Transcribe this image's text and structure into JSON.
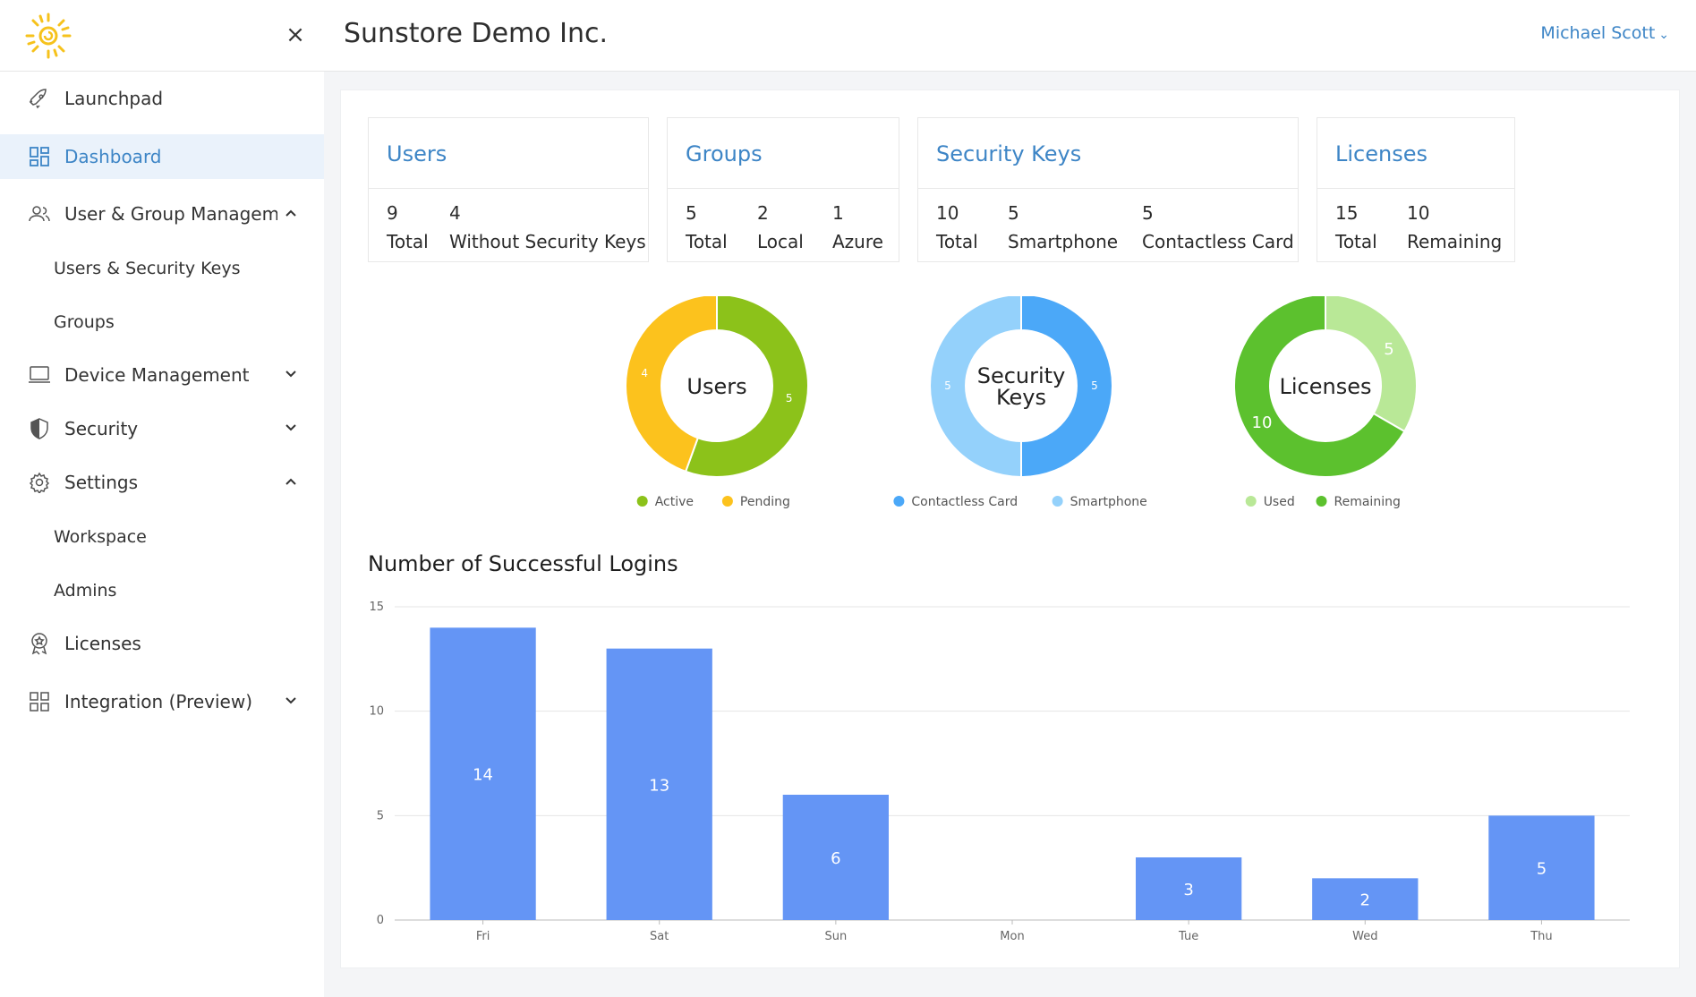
{
  "header": {
    "title": "Sunstore Demo Inc.",
    "user_name": "Michael Scott",
    "close_glyph": "×",
    "chevron_glyph": "⌄"
  },
  "sidebar": {
    "items": [
      {
        "label": "Launchpad",
        "icon": "rocket-icon"
      },
      {
        "label": "Dashboard",
        "icon": "dashboard-icon",
        "active": true
      },
      {
        "label": "User & Group Manageme...",
        "icon": "users-icon",
        "expanded": true
      },
      {
        "label": "Device Management",
        "icon": "laptop-icon",
        "expanded": false
      },
      {
        "label": "Security",
        "icon": "shield-icon",
        "expanded": false
      },
      {
        "label": "Settings",
        "icon": "gear-icon",
        "expanded": true
      },
      {
        "label": "Licenses",
        "icon": "award-icon"
      },
      {
        "label": "Integration (Preview)",
        "icon": "grid-icon",
        "expanded": false
      }
    ],
    "sub_items": {
      "user_group": [
        "Users & Security Keys",
        "Groups"
      ],
      "settings": [
        "Workspace",
        "Admins"
      ]
    }
  },
  "cards": {
    "users": {
      "title": "Users",
      "stats": [
        {
          "value": "9",
          "label": "Total"
        },
        {
          "value": "4",
          "label": "Without Security Keys"
        }
      ]
    },
    "groups": {
      "title": "Groups",
      "stats": [
        {
          "value": "5",
          "label": "Total"
        },
        {
          "value": "2",
          "label": "Local"
        },
        {
          "value": "1",
          "label": "Azure"
        }
      ]
    },
    "security_keys": {
      "title": "Security Keys",
      "stats": [
        {
          "value": "10",
          "label": "Total"
        },
        {
          "value": "5",
          "label": "Smartphone"
        },
        {
          "value": "5",
          "label": "Contactless Card"
        }
      ]
    },
    "licenses": {
      "title": "Licenses",
      "stats": [
        {
          "value": "15",
          "label": "Total"
        },
        {
          "value": "10",
          "label": "Remaining"
        }
      ]
    }
  },
  "donuts": [
    {
      "center_label": [
        "Users"
      ],
      "slices": [
        {
          "name": "Active",
          "value": 5,
          "color": "#8cc21a"
        },
        {
          "name": "Pending",
          "value": 4,
          "color": "#fcc21d"
        }
      ]
    },
    {
      "center_label": [
        "Security",
        "Keys"
      ],
      "slices": [
        {
          "name": "Contactless Card",
          "value": 5,
          "color": "#4ba8f8"
        },
        {
          "name": "Smartphone",
          "value": 5,
          "color": "#94d1fb"
        }
      ]
    },
    {
      "center_label": [
        "Licenses"
      ],
      "slices": [
        {
          "name": "Used",
          "value": 5,
          "color": "#b9e897"
        },
        {
          "name": "Remaining",
          "value": 10,
          "color": "#5cc12e"
        }
      ]
    }
  ],
  "chart_data": {
    "type": "bar",
    "title": "Number of Successful Logins",
    "categories": [
      "Fri",
      "Sat",
      "Sun",
      "Mon",
      "Tue",
      "Wed",
      "Thu"
    ],
    "values": [
      14,
      13,
      6,
      0,
      3,
      2,
      5
    ],
    "ylim": [
      0,
      15
    ],
    "yticks": [
      0,
      5,
      10,
      15
    ],
    "grid": true,
    "color": "#6495f5"
  }
}
